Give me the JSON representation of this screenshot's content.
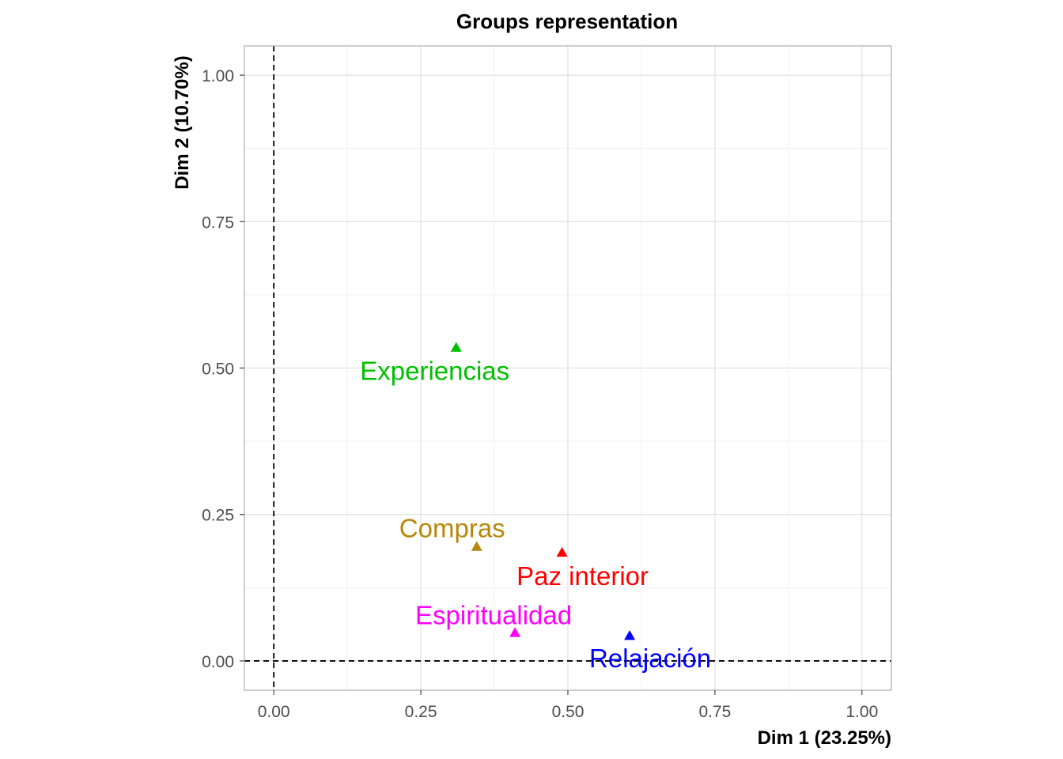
{
  "chart_data": {
    "type": "scatter",
    "title": "Groups representation",
    "xlabel": "Dim 1 (23.25%)",
    "ylabel": "Dim 2 (10.70%)",
    "xlim": [
      -0.05,
      1.05
    ],
    "ylim": [
      -0.05,
      1.05
    ],
    "x_ticks": [
      0.0,
      0.25,
      0.5,
      0.75,
      1.0
    ],
    "y_ticks": [
      0.0,
      0.25,
      0.5,
      0.75,
      1.0
    ],
    "x_tick_labels": [
      "0.00",
      "0.25",
      "0.50",
      "0.75",
      "1.00"
    ],
    "y_tick_labels": [
      "0.00",
      "0.25",
      "0.50",
      "0.75",
      "1.00"
    ],
    "grid": true,
    "reference_lines": {
      "x": 0,
      "y": 0,
      "style": "dashed"
    },
    "marker": "triangle",
    "points": [
      {
        "label": "Experiencias",
        "x": 0.31,
        "y": 0.535,
        "color": "#00c000"
      },
      {
        "label": "Compras",
        "x": 0.345,
        "y": 0.195,
        "color": "#b8860b"
      },
      {
        "label": "Paz interior",
        "x": 0.49,
        "y": 0.185,
        "color": "#ff0000"
      },
      {
        "label": "Espiritualidad",
        "x": 0.41,
        "y": 0.048,
        "color": "#ff00ff"
      },
      {
        "label": "Relajación",
        "x": 0.605,
        "y": 0.043,
        "color": "#0000ff"
      }
    ]
  }
}
